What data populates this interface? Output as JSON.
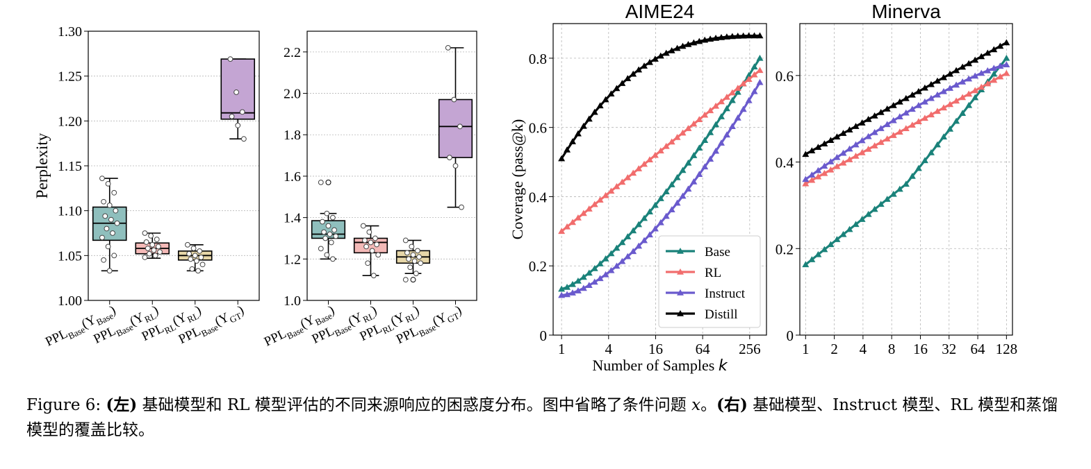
{
  "chart_data": [
    {
      "type": "box",
      "ylabel": "Perplexity",
      "ylim": [
        1.0,
        1.3
      ],
      "yticks": [
        "1.00",
        "1.05",
        "1.10",
        "1.15",
        "1.20",
        "1.25",
        "1.30"
      ],
      "ytick_values": [
        1.0,
        1.05,
        1.1,
        1.15,
        1.2,
        1.25,
        1.3
      ],
      "grid": true,
      "categories": [
        {
          "ppl": "PPL",
          "ppl_sub": "Base",
          "y": "Y",
          "y_sub": "Base"
        },
        {
          "ppl": "PPL",
          "ppl_sub": "Base",
          "y": "Y",
          "y_sub": "RL"
        },
        {
          "ppl": "PPL",
          "ppl_sub": "RL",
          "y": "Y",
          "y_sub": "RL"
        },
        {
          "ppl": "PPL",
          "ppl_sub": "Base",
          "y": "Y",
          "y_sub": "GT"
        }
      ],
      "colors": [
        "#8fbfbd",
        "#f3b9b7",
        "#e6d6a8",
        "#c4a5d3"
      ],
      "boxes": [
        {
          "whisker_low": 1.033,
          "q1": 1.067,
          "median": 1.086,
          "q3": 1.104,
          "whisker_high": 1.136,
          "points": [
            1.136,
            1.13,
            1.12,
            1.11,
            1.106,
            1.1,
            1.094,
            1.09,
            1.086,
            1.08,
            1.075,
            1.07,
            1.06,
            1.05,
            1.045,
            1.033
          ]
        },
        {
          "whisker_low": 1.047,
          "q1": 1.052,
          "median": 1.058,
          "q3": 1.064,
          "whisker_high": 1.075,
          "points": [
            1.075,
            1.072,
            1.068,
            1.065,
            1.062,
            1.06,
            1.058,
            1.056,
            1.054,
            1.052,
            1.05,
            1.048
          ]
        },
        {
          "whisker_low": 1.033,
          "q1": 1.045,
          "median": 1.05,
          "q3": 1.055,
          "whisker_high": 1.062,
          "points": [
            1.062,
            1.058,
            1.055,
            1.052,
            1.05,
            1.048,
            1.046,
            1.044,
            1.04,
            1.035,
            1.033
          ]
        },
        {
          "whisker_low": 1.18,
          "q1": 1.202,
          "median": 1.209,
          "q3": 1.269,
          "whisker_high": 1.269,
          "points": [
            1.269,
            1.232,
            1.21,
            1.205,
            1.195,
            1.18
          ]
        }
      ]
    },
    {
      "type": "box",
      "ylim": [
        1.0,
        2.3
      ],
      "yticks": [
        "1.0",
        "1.2",
        "1.4",
        "1.6",
        "1.8",
        "2.0",
        "2.2"
      ],
      "ytick_values": [
        1.0,
        1.2,
        1.4,
        1.6,
        1.8,
        2.0,
        2.2
      ],
      "grid": true,
      "categories": [
        {
          "ppl": "PPL",
          "ppl_sub": "Base",
          "y": "Y",
          "y_sub": "Base"
        },
        {
          "ppl": "PPL",
          "ppl_sub": "Base",
          "y": "Y",
          "y_sub": "RL"
        },
        {
          "ppl": "PPL",
          "ppl_sub": "RL",
          "y": "Y",
          "y_sub": "RL"
        },
        {
          "ppl": "PPL",
          "ppl_sub": "Base",
          "y": "Y",
          "y_sub": "GT"
        }
      ],
      "colors": [
        "#8fbfbd",
        "#f3b9b7",
        "#e6d6a8",
        "#c4a5d3"
      ],
      "boxes": [
        {
          "whisker_low": 1.2,
          "q1": 1.3,
          "median": 1.32,
          "q3": 1.385,
          "whisker_high": 1.42,
          "outliers": [
            1.57
          ],
          "points": [
            1.57,
            1.42,
            1.4,
            1.38,
            1.36,
            1.34,
            1.33,
            1.32,
            1.31,
            1.3,
            1.28,
            1.25,
            1.22,
            1.2
          ]
        },
        {
          "whisker_low": 1.12,
          "q1": 1.23,
          "median": 1.28,
          "q3": 1.3,
          "whisker_high": 1.36,
          "points": [
            1.36,
            1.33,
            1.3,
            1.29,
            1.28,
            1.27,
            1.26,
            1.24,
            1.22,
            1.18,
            1.12
          ]
        },
        {
          "whisker_low": 1.13,
          "q1": 1.18,
          "median": 1.21,
          "q3": 1.24,
          "whisker_high": 1.29,
          "outliers": [
            1.1
          ],
          "points": [
            1.29,
            1.26,
            1.24,
            1.23,
            1.22,
            1.21,
            1.2,
            1.19,
            1.18,
            1.16,
            1.13,
            1.1
          ]
        },
        {
          "whisker_low": 1.45,
          "q1": 1.69,
          "median": 1.84,
          "q3": 1.97,
          "whisker_high": 2.22,
          "points": [
            2.22,
            1.97,
            1.84,
            1.69,
            1.65,
            1.45
          ]
        }
      ]
    },
    {
      "type": "line",
      "title": "AIME24",
      "xlabel": "Number of Samples",
      "xlabel_var": "k",
      "ylabel": "Coverage (pass@k)",
      "xscale": "log2",
      "xlim": [
        0.78,
        420
      ],
      "ylim": [
        0,
        0.9
      ],
      "xticks": [
        "1",
        "4",
        "16",
        "64",
        "256"
      ],
      "xtick_values": [
        1,
        4,
        16,
        64,
        256
      ],
      "yticks": [
        "0",
        "0.2",
        "0.4",
        "0.6",
        "0.8"
      ],
      "ytick_values": [
        0,
        0.2,
        0.4,
        0.6,
        0.8
      ],
      "grid": true,
      "legend_position": "lower-right",
      "series": [
        {
          "name": "Base",
          "color": "#1a827a",
          "start": 0.133,
          "end": 0.8
        },
        {
          "name": "RL",
          "color": "#f16d6d",
          "start": 0.3,
          "end": 0.765
        },
        {
          "name": "Instruct",
          "color": "#6a5acd",
          "start": 0.115,
          "end": 0.73
        },
        {
          "name": "Distill",
          "color": "#000000",
          "start": 0.51,
          "end": 0.865
        }
      ]
    },
    {
      "type": "line",
      "title": "Minerva",
      "xscale": "log2",
      "xlim": [
        0.87,
        148
      ],
      "ylim": [
        0,
        0.72
      ],
      "xticks": [
        "1",
        "2",
        "4",
        "8",
        "16",
        "32",
        "64",
        "128"
      ],
      "xtick_values": [
        1,
        2,
        4,
        8,
        16,
        32,
        64,
        128
      ],
      "yticks": [
        "0",
        "0.2",
        "0.4",
        "0.6"
      ],
      "ytick_values": [
        0,
        0.2,
        0.4,
        0.6
      ],
      "grid": true,
      "series": [
        {
          "name": "Base",
          "color": "#1a827a",
          "start": 0.163,
          "end": 0.64
        },
        {
          "name": "RL",
          "color": "#f16d6d",
          "start": 0.35,
          "end": 0.605
        },
        {
          "name": "Instruct",
          "color": "#6a5acd",
          "start": 0.36,
          "end": 0.625
        },
        {
          "name": "Distill",
          "color": "#000000",
          "start": 0.418,
          "end": 0.676
        }
      ]
    }
  ],
  "caption": {
    "figure_label": "Figure 6:",
    "left_mark": "(左)",
    "text1": "基础模型和 RL 模型评估的不同来源响应的困惑度分布。图中省略了条件问题",
    "var": "x",
    "text2": "。",
    "right_mark": "(右)",
    "text3": "基础模型、Instruct 模型、RL 模型和蒸馏模型的覆盖比较。"
  }
}
